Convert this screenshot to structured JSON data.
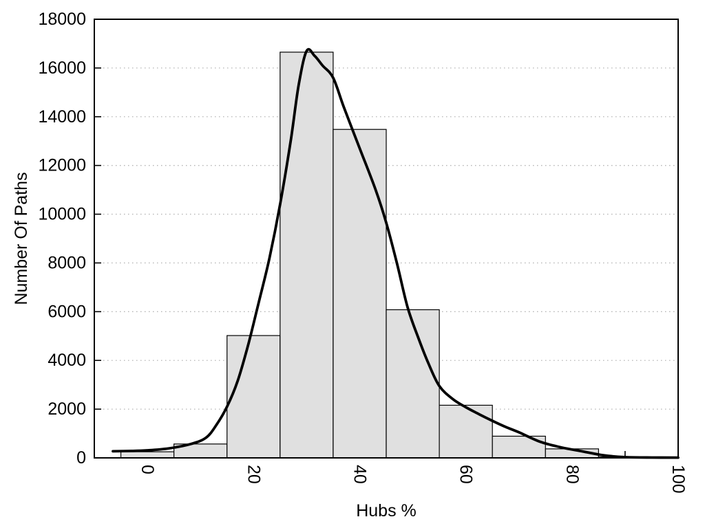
{
  "chart_data": {
    "type": "bar",
    "subtype": "histogram-with-density-curve",
    "title": "",
    "xlabel": "Hubs %",
    "ylabel": "Number Of Paths",
    "xlim": [
      -10,
      100
    ],
    "ylim": [
      0,
      18000
    ],
    "bin_width": 10,
    "categories": [
      0,
      10,
      20,
      30,
      40,
      50,
      60,
      70,
      80,
      90
    ],
    "values": [
      250,
      570,
      5020,
      16650,
      13480,
      6080,
      2160,
      890,
      370,
      40
    ],
    "xticks": {
      "values": [
        0,
        20,
        40,
        60,
        80,
        100
      ],
      "labels": [
        "0",
        "20",
        "40",
        "60",
        "80",
        "100"
      ],
      "minor_step": 10,
      "label_rotation_deg": 90,
      "tick_length": 10
    },
    "yticks": {
      "values": [
        0,
        2000,
        4000,
        6000,
        8000,
        10000,
        12000,
        14000,
        16000,
        18000
      ],
      "labels": [
        "0",
        "2000",
        "4000",
        "6000",
        "8000",
        "10000",
        "12000",
        "14000",
        "16000",
        "18000"
      ],
      "tick_length": 10
    },
    "grid": {
      "horizontal": true,
      "vertical": false,
      "style": "dotted"
    },
    "curve": {
      "name": "density-fit-curve",
      "x": [
        -6.5,
        -3,
        0,
        4,
        8,
        11,
        13,
        15,
        17,
        19,
        21,
        23,
        25,
        27,
        28.5,
        30,
        31.5,
        33,
        35,
        37,
        40,
        43,
        45,
        47,
        49,
        51,
        53,
        55,
        57.5,
        60,
        62.5,
        65,
        67.5,
        70,
        74,
        78,
        82,
        86,
        90,
        95,
        100
      ],
      "y": [
        270,
        285,
        310,
        390,
        560,
        820,
        1350,
        2100,
        3150,
        4650,
        6400,
        8200,
        10400,
        13000,
        15300,
        16700,
        16500,
        16100,
        15600,
        14400,
        12700,
        11000,
        9650,
        8000,
        6200,
        4950,
        3850,
        2950,
        2420,
        2080,
        1790,
        1520,
        1270,
        1050,
        660,
        430,
        265,
        105,
        32,
        14,
        12
      ]
    },
    "colors": {
      "background": "#ffffff",
      "bar_fill": "#e0e0e0",
      "bar_border": "#000000",
      "curve": "#000000",
      "grid": "#b3b3b3",
      "frame": "#000000",
      "text": "#000000"
    },
    "legend": {
      "visible": false
    }
  }
}
